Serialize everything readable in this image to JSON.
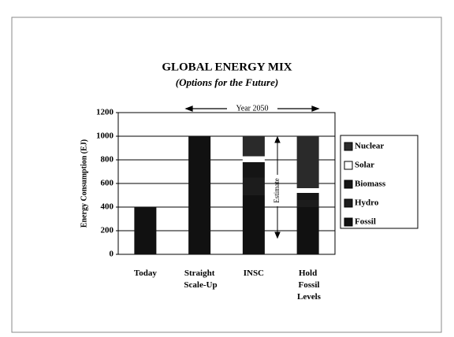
{
  "chart_data": {
    "type": "stacked_bar",
    "title": "GLOBAL ENERGY MIX",
    "subtitle": "(Options for the Future)",
    "y_label": "Energy Consumption (EJ)",
    "annotations": [
      "Year 2050",
      "Estimate"
    ],
    "categories": [
      "Today",
      "Straight Scale-Up",
      "INSC",
      "Hold Fossil Levels"
    ],
    "series": [
      {
        "name": "Fossil",
        "color": "#111111",
        "values": [
          400,
          1000,
          500,
          400
        ]
      },
      {
        "name": "Hydro",
        "color": "#1c1c1c",
        "values": [
          0,
          0,
          150,
          60
        ]
      },
      {
        "name": "Biomass",
        "color": "#151515",
        "values": [
          0,
          0,
          130,
          60
        ]
      },
      {
        "name": "Solar",
        "color": "#ffffff",
        "values": [
          0,
          0,
          50,
          40
        ]
      },
      {
        "name": "Nuclear",
        "color": "#2a2a2a",
        "values": [
          0,
          0,
          170,
          440
        ]
      }
    ],
    "ylim": [
      0,
      1200
    ],
    "yticks": [
      0,
      200,
      400,
      600,
      800,
      1000,
      1200
    ],
    "grid": true
  }
}
